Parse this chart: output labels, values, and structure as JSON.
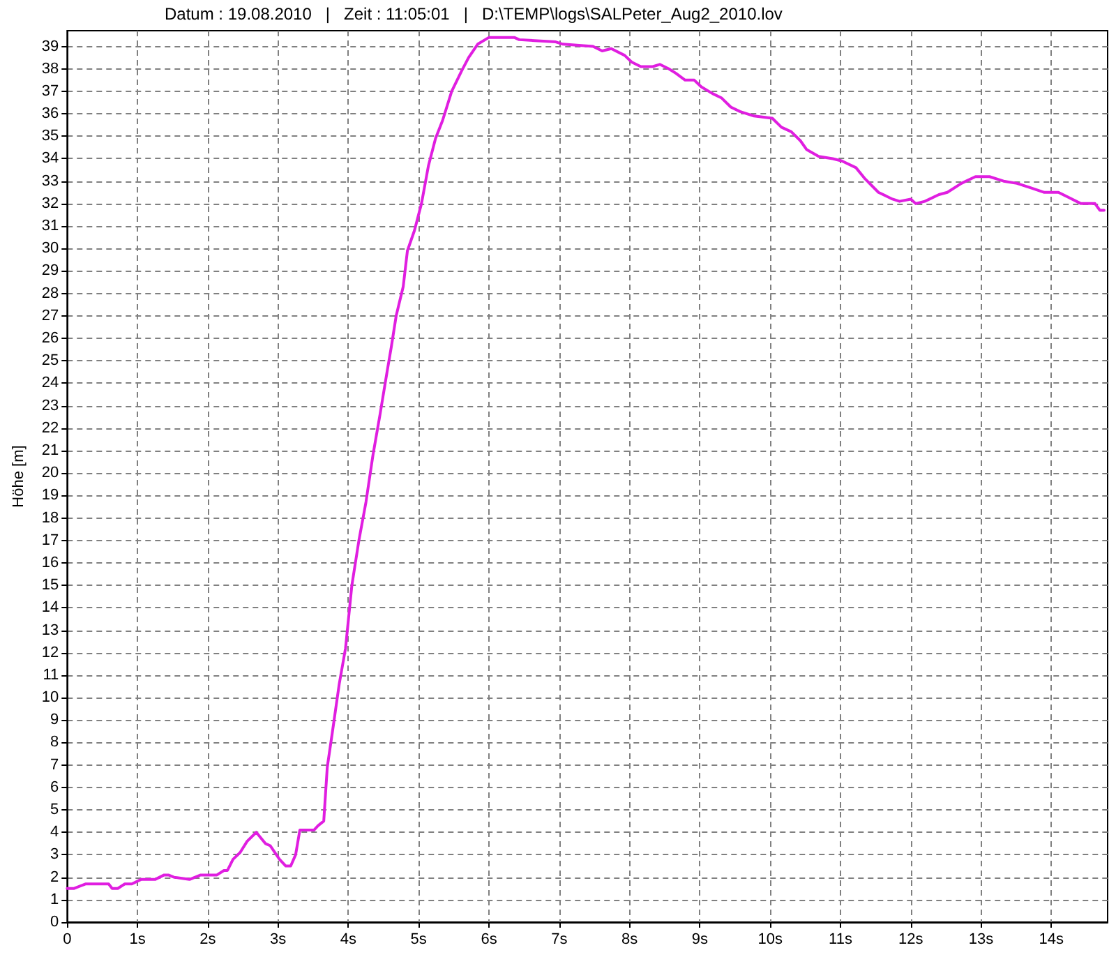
{
  "chart_data": {
    "type": "line",
    "title": "Datum : 19.08.2010   |   Zeit : 11:05:01   |   D:\\TEMP\\logs\\SALPeter_Aug2_2010.lov",
    "ylabel": "Höhe [m]",
    "x": [
      0,
      0.1,
      0.26,
      0.43,
      0.59,
      0.64,
      0.72,
      0.82,
      0.92,
      1.05,
      1.11,
      1.25,
      1.38,
      1.44,
      1.52,
      1.74,
      1.9,
      2.13,
      2.23,
      2.28,
      2.36,
      2.46,
      2.56,
      2.69,
      2.82,
      2.89,
      3.02,
      3.11,
      3.18,
      3.25,
      3.31,
      3.51,
      3.57,
      3.65,
      3.7,
      3.77,
      3.87,
      3.96,
      4.05,
      4.15,
      4.25,
      4.35,
      4.45,
      4.55,
      4.61,
      4.68,
      4.78,
      4.84,
      4.94,
      5.04,
      5.14,
      5.24,
      5.34,
      5.47,
      5.61,
      5.71,
      5.84,
      6.0,
      6.36,
      6.43,
      6.95,
      7.05,
      7.48,
      7.61,
      7.74,
      7.93,
      8.03,
      8.16,
      8.33,
      8.43,
      8.56,
      8.66,
      8.79,
      8.92,
      9.02,
      9.18,
      9.31,
      9.44,
      9.57,
      9.77,
      10.03,
      10.16,
      10.3,
      10.43,
      10.52,
      10.69,
      10.89,
      11.02,
      11.22,
      11.35,
      11.54,
      11.74,
      11.84,
      12.0,
      12.07,
      12.2,
      12.4,
      12.52,
      12.72,
      12.92,
      13.12,
      13.32,
      13.51,
      13.71,
      13.9,
      14.1,
      14.23,
      14.42,
      14.62,
      14.69,
      14.75
    ],
    "values": [
      1.5,
      1.5,
      1.7,
      1.7,
      1.7,
      1.5,
      1.5,
      1.7,
      1.7,
      1.9,
      1.9,
      1.9,
      2.1,
      2.1,
      2.0,
      1.9,
      2.1,
      2.1,
      2.3,
      2.3,
      2.8,
      3.1,
      3.6,
      4.0,
      3.5,
      3.4,
      2.8,
      2.5,
      2.5,
      3.0,
      4.1,
      4.1,
      4.3,
      4.5,
      6.9,
      8.4,
      10.6,
      12.2,
      15.0,
      17.0,
      18.7,
      20.8,
      22.6,
      24.5,
      25.6,
      27.0,
      28.3,
      29.9,
      30.8,
      32.0,
      33.7,
      34.9,
      35.7,
      37.0,
      37.9,
      38.5,
      39.1,
      39.4,
      39.4,
      39.3,
      39.2,
      39.1,
      39.0,
      38.8,
      38.9,
      38.6,
      38.3,
      38.1,
      38.1,
      38.2,
      38.0,
      37.8,
      37.5,
      37.5,
      37.2,
      36.9,
      36.7,
      36.3,
      36.1,
      35.9,
      35.8,
      35.4,
      35.2,
      34.8,
      34.4,
      34.1,
      34.0,
      33.9,
      33.6,
      33.1,
      32.5,
      32.2,
      32.1,
      32.2,
      32.0,
      32.1,
      32.4,
      32.5,
      32.9,
      33.2,
      33.2,
      33.0,
      32.9,
      32.7,
      32.5,
      32.5,
      32.3,
      32.0,
      32.0,
      31.7,
      31.7
    ],
    "color": "#e01ee0",
    "xlim": [
      0,
      14.8
    ],
    "ylim": [
      0,
      39.7
    ],
    "xticks": [
      0,
      {
        "value": 1,
        "label": "1s"
      },
      {
        "value": 2,
        "label": "2s"
      },
      {
        "value": 3,
        "label": "3s"
      },
      {
        "value": 4,
        "label": "4s"
      },
      {
        "value": 5,
        "label": "5s"
      },
      {
        "value": 6,
        "label": "6s"
      },
      {
        "value": 7,
        "label": "7s"
      },
      {
        "value": 8,
        "label": "8s"
      },
      {
        "value": 9,
        "label": "9s"
      },
      {
        "value": 10,
        "label": "10s"
      },
      {
        "value": 11,
        "label": "11s"
      },
      {
        "value": 12,
        "label": "12s"
      },
      {
        "value": 13,
        "label": "13s"
      },
      {
        "value": 14,
        "label": "14s"
      }
    ],
    "yticks": [
      0,
      1,
      2,
      3,
      4,
      5,
      6,
      7,
      8,
      9,
      10,
      11,
      12,
      13,
      14,
      15,
      16,
      17,
      18,
      19,
      20,
      21,
      22,
      23,
      24,
      25,
      26,
      27,
      28,
      29,
      30,
      31,
      32,
      33,
      34,
      35,
      36,
      37,
      38,
      39
    ],
    "grid": true,
    "marker": "none",
    "line_style": "solid"
  }
}
